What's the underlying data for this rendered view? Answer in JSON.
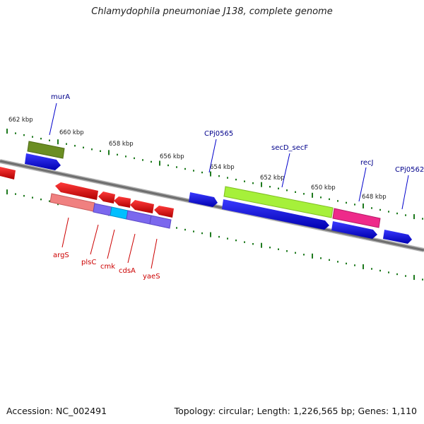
{
  "title": "Chlamydophila pneumoniae J138, complete genome",
  "footer": {
    "accession": "Accession: NC_002491",
    "summary": "Topology: circular; Length: 1,226,565 bp; Genes: 1,110"
  },
  "ticks": [
    "662 kbp",
    "660 kbp",
    "658 kbp",
    "656 kbp",
    "654 kbp",
    "652 kbp",
    "650 kbp",
    "648 kbp"
  ],
  "gene_labels": {
    "forward": [
      "murA",
      "CPj0565",
      "secD_secF",
      "recJ",
      "CPj0562"
    ],
    "reverse": [
      "argS",
      "plsC",
      "cmk",
      "cdsA",
      "yaeS"
    ]
  },
  "colors": {
    "backbone": "#7a7a7a",
    "tick": "#1e7a1e",
    "forward_label": "#00008b",
    "reverse_label": "#cc0000",
    "cds_forward": "#0000ee",
    "cds_reverse": "#ee0000",
    "feature_olive": "#6b8e23",
    "feature_lime": "#a6f03a",
    "feature_pink": "#ee2a8a",
    "feature_salmon": "#f08080",
    "feature_purple": "#7b68ee",
    "feature_cyan": "#00bfff"
  }
}
